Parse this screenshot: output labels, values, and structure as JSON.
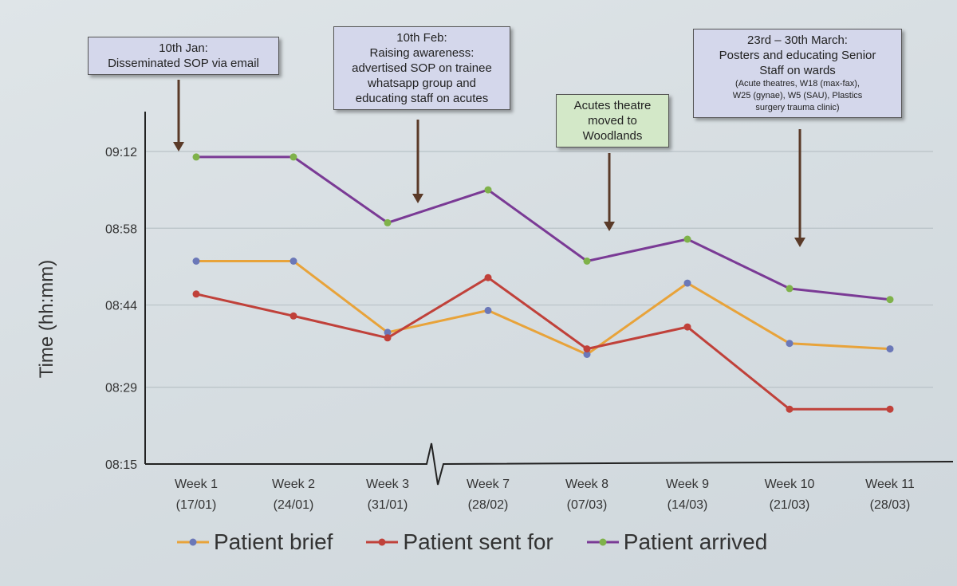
{
  "chart_data": {
    "type": "line",
    "ylabel": "Time (hh:mm)",
    "y_ticks": [
      "08:15",
      "08:29",
      "08:44",
      "08:58",
      "09:12"
    ],
    "ylim_minutes": [
      495,
      552
    ],
    "categories": [
      {
        "week": "Week 1",
        "date": "(17/01)"
      },
      {
        "week": "Week 2",
        "date": "(24/01)"
      },
      {
        "week": "Week 3",
        "date": "(31/01)"
      },
      {
        "week": "Week 7",
        "date": "(28/02)"
      },
      {
        "week": "Week 8",
        "date": "(07/03)"
      },
      {
        "week": "Week 9",
        "date": "(14/03)"
      },
      {
        "week": "Week 10",
        "date": "(21/03)"
      },
      {
        "week": "Week 11",
        "date": "(28/03)"
      }
    ],
    "axis_break_between": [
      "Week 3",
      "Week 7"
    ],
    "series": [
      {
        "name": "Patient brief",
        "color": "#e8a33a",
        "marker": "#6b78b8",
        "values": [
          "08:52",
          "08:52",
          "08:39",
          "08:43",
          "08:35",
          "08:48",
          "08:37",
          "08:36"
        ]
      },
      {
        "name": "Patient sent for",
        "color": "#c0413a",
        "marker": "#c0413a",
        "values": [
          "08:46",
          "08:42",
          "08:38",
          "08:49",
          "08:36",
          "08:40",
          "08:25",
          "08:25"
        ]
      },
      {
        "name": "Patient arrived",
        "color": "#7a3a95",
        "marker": "#7fb24a",
        "values": [
          "09:11",
          "09:11",
          "08:59",
          "09:05",
          "08:52",
          "08:56",
          "08:47",
          "08:45"
        ]
      }
    ],
    "grid": true,
    "legend_position": "bottom"
  },
  "annotations": [
    {
      "id": "jan",
      "bg": "#d4d7eb",
      "lines": [
        "10th Jan:",
        "Disseminated SOP via email"
      ],
      "small": []
    },
    {
      "id": "feb",
      "bg": "#d4d7eb",
      "lines": [
        "10th Feb:",
        "Raising awareness:",
        "advertised SOP on trainee",
        "whatsapp group and",
        "educating staff on acutes"
      ],
      "small": []
    },
    {
      "id": "woodlands",
      "bg": "#d3e8c8",
      "lines": [
        "Acutes theatre",
        "moved to",
        "Woodlands"
      ],
      "small": []
    },
    {
      "id": "march",
      "bg": "#d4d7eb",
      "lines": [
        "23rd – 30th March:",
        "Posters and educating Senior",
        "Staff on wards"
      ],
      "small": [
        "(Acute theatres, W18 (max-fax),",
        "W25 (gynae), W5 (SAU), Plastics",
        "surgery trauma clinic)"
      ]
    }
  ]
}
